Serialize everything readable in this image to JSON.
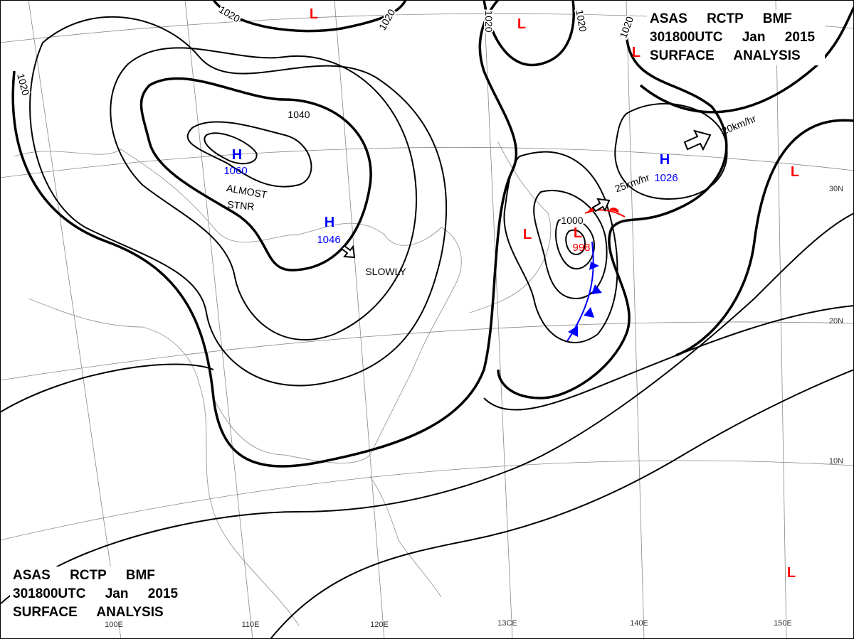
{
  "header_top": {
    "line1": "ASAS RCTP BMF",
    "line2": "301800UTC Jan 2015",
    "line3": "SURFACE ANALYSIS"
  },
  "header_bottom": {
    "line1": "ASAS RCTP BMF",
    "line2": "301800UTC Jan 2015",
    "line3": "SURFACE ANALYSIS"
  },
  "pressure_centers": [
    {
      "symbol": "H",
      "value": "1060"
    },
    {
      "symbol": "H",
      "value": "1046"
    },
    {
      "symbol": "H",
      "value": "1026"
    },
    {
      "symbol": "L",
      "value": "998"
    },
    {
      "symbol": "L"
    },
    {
      "symbol": "L"
    },
    {
      "symbol": "L"
    },
    {
      "symbol": "L"
    },
    {
      "symbol": "L"
    },
    {
      "symbol": "L"
    }
  ],
  "isobar_labels": [
    "1020",
    "1020",
    "1020",
    "1020",
    "1020",
    "1020",
    "1040",
    "1000"
  ],
  "motion_labels": [
    "20km/hr",
    "25km/hr",
    "ALMOST",
    "STNR",
    "SLOWLY"
  ],
  "grid_labels": {
    "longitudes": [
      "100E",
      "110E",
      "120E",
      "13CE",
      "140E",
      "150E"
    ],
    "latitudes": [
      "10N",
      "20N",
      "30N"
    ]
  }
}
